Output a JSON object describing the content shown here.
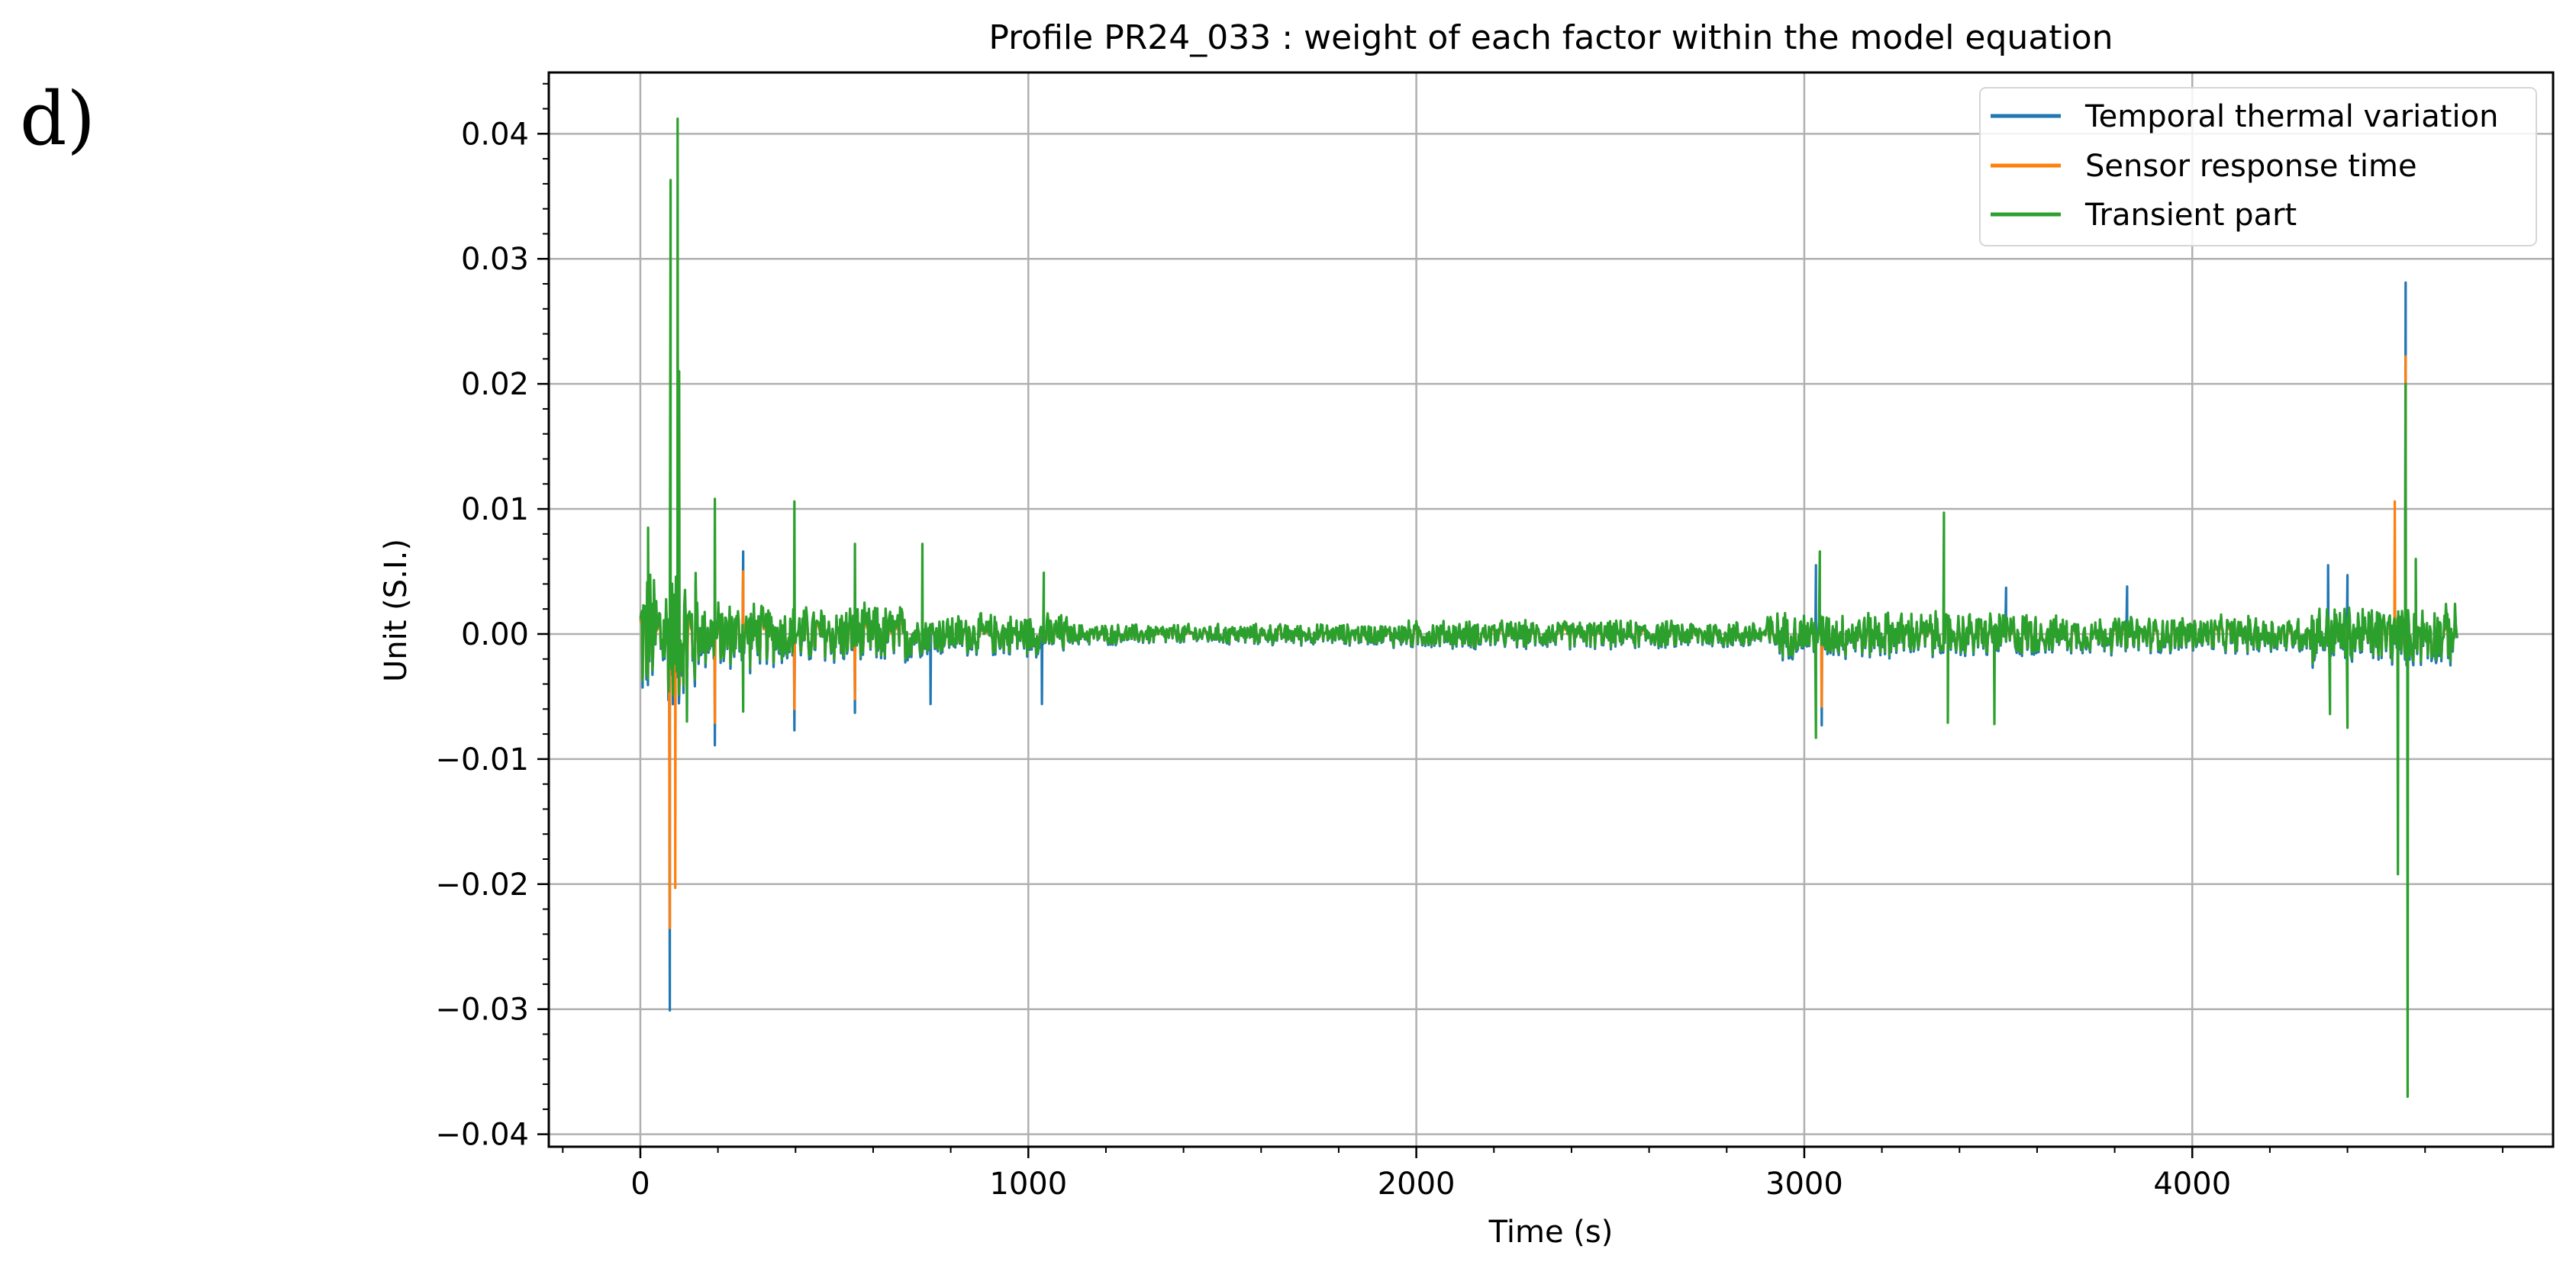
{
  "figure": {
    "panel_label": "d)"
  },
  "chart_data": {
    "type": "line",
    "title": "Profile PR24_033 : weight of each factor within the model equation",
    "xlabel": "Time (s)",
    "ylabel": "Unit (S.I.)",
    "xlim": [
      -236,
      4930
    ],
    "ylim": [
      -0.041,
      0.0449
    ],
    "x_ticks": [
      0,
      1000,
      2000,
      3000,
      4000
    ],
    "x_tick_labels": [
      "0",
      "1000",
      "2000",
      "3000",
      "4000"
    ],
    "x_minor_step": 200,
    "y_ticks": [
      -0.04,
      -0.03,
      -0.02,
      -0.01,
      0.0,
      0.01,
      0.02,
      0.03,
      0.04
    ],
    "y_tick_labels": [
      "−0.04",
      "−0.03",
      "−0.02",
      "−0.01",
      "0.00",
      "0.01",
      "0.02",
      "0.03",
      "0.04"
    ],
    "y_minor_step": 0.002,
    "grid": true,
    "legend_position": "upper right",
    "x_range_data": [
      0,
      4683
    ],
    "series": [
      {
        "name": "Temporal thermal variation",
        "color": "#1f77b4",
        "noise_scale": 1.0,
        "description": "Closely follows sensor response time with slightly larger amplitude; extremes ~ +0.0281 at t≈4550 s and ~ -0.030 at t≈76 s",
        "key_points": [
          {
            "t": 76,
            "v": -0.0301
          },
          {
            "t": 192,
            "v": -0.0089
          },
          {
            "t": 265,
            "v": 0.0066
          },
          {
            "t": 397,
            "v": -0.0077
          },
          {
            "t": 553,
            "v": -0.0063
          },
          {
            "t": 748,
            "v": -0.0056
          },
          {
            "t": 1035,
            "v": -0.0056
          },
          {
            "t": 3030,
            "v": 0.0055
          },
          {
            "t": 3045,
            "v": -0.0073
          },
          {
            "t": 3520,
            "v": 0.0037
          },
          {
            "t": 3832,
            "v": 0.0038
          },
          {
            "t": 4350,
            "v": 0.0055
          },
          {
            "t": 4400,
            "v": 0.0047
          },
          {
            "t": 4550,
            "v": 0.0281
          }
        ]
      },
      {
        "name": "Sensor response time",
        "color": "#ff7f0e",
        "noise_scale": 0.85,
        "description": "Drawn between blue and green; extremes ~ +0.0222 at t≈4550 s and ~ -0.0235 at t≈76 s",
        "key_points": [
          {
            "t": 76,
            "v": -0.0235
          },
          {
            "t": 90,
            "v": -0.0203
          },
          {
            "t": 192,
            "v": -0.0071
          },
          {
            "t": 265,
            "v": 0.005
          },
          {
            "t": 397,
            "v": -0.006
          },
          {
            "t": 553,
            "v": -0.0052
          },
          {
            "t": 3045,
            "v": -0.0058
          },
          {
            "t": 4522,
            "v": 0.0106
          },
          {
            "t": 4550,
            "v": 0.0222
          }
        ]
      },
      {
        "name": "Transient part",
        "color": "#2ca02c",
        "noise_scale": 1.0,
        "description": "Dominant noisy component drawn on top; extremes ~ +0.0412 at t≈96 s and ~ -0.037 at t≈4555 s; quiet band ~±0.0009 between 1100-1940 s",
        "key_points": [
          {
            "t": 20,
            "v": 0.0085
          },
          {
            "t": 78,
            "v": 0.0363
          },
          {
            "t": 96,
            "v": 0.0412
          },
          {
            "t": 100,
            "v": 0.021
          },
          {
            "t": 120,
            "v": -0.007
          },
          {
            "t": 192,
            "v": 0.0108
          },
          {
            "t": 265,
            "v": -0.0062
          },
          {
            "t": 397,
            "v": 0.0106
          },
          {
            "t": 553,
            "v": 0.0072
          },
          {
            "t": 727,
            "v": 0.0072
          },
          {
            "t": 1040,
            "v": 0.0049
          },
          {
            "t": 3030,
            "v": -0.0083
          },
          {
            "t": 3040,
            "v": 0.0066
          },
          {
            "t": 3360,
            "v": 0.0097
          },
          {
            "t": 3370,
            "v": -0.0071
          },
          {
            "t": 3490,
            "v": -0.0072
          },
          {
            "t": 4355,
            "v": -0.0064
          },
          {
            "t": 4400,
            "v": -0.0075
          },
          {
            "t": 4530,
            "v": -0.0192
          },
          {
            "t": 4550,
            "v": 0.02
          },
          {
            "t": 4555,
            "v": -0.037
          },
          {
            "t": 4576,
            "v": 0.006
          }
        ]
      }
    ],
    "noise_envelope": [
      {
        "t0": 0,
        "t1": 150,
        "amp": 0.006
      },
      {
        "t0": 150,
        "t1": 300,
        "amp": 0.003
      },
      {
        "t0": 300,
        "t1": 700,
        "amp": 0.0026
      },
      {
        "t0": 700,
        "t1": 1100,
        "amp": 0.0018
      },
      {
        "t0": 1100,
        "t1": 1940,
        "amp": 0.0009
      },
      {
        "t0": 1940,
        "t1": 2900,
        "amp": 0.0012
      },
      {
        "t0": 2900,
        "t1": 3600,
        "amp": 0.002
      },
      {
        "t0": 3600,
        "t1": 4300,
        "amp": 0.0016
      },
      {
        "t0": 4300,
        "t1": 4683,
        "amp": 0.0026
      }
    ]
  }
}
